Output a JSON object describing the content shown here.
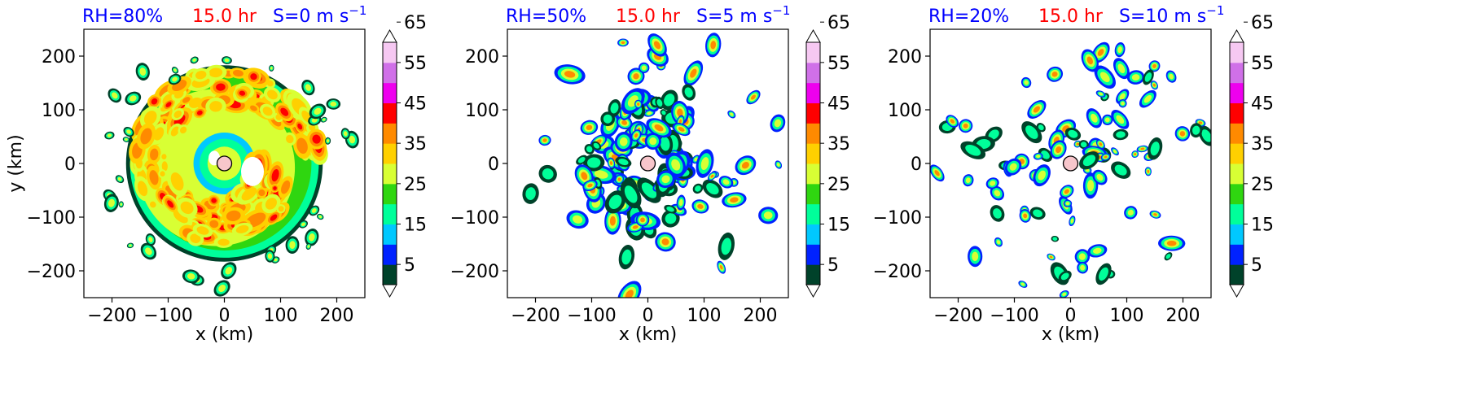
{
  "chart_data": [
    {
      "type": "heatmap",
      "title_parts": [
        {
          "text": "RH=80%",
          "color": "#0000ff"
        },
        {
          "text": "15.0 hr",
          "color": "#ff0000"
        },
        {
          "text": "S=0 m s",
          "sup": "−1",
          "color": "#0000ff"
        }
      ],
      "xlabel": "x (km)",
      "ylabel": "y (km)",
      "xlim": [
        -250,
        250
      ],
      "ylim": [
        -250,
        250
      ],
      "xticks": [
        -200,
        -100,
        0,
        100,
        200
      ],
      "yticks": [
        -200,
        -100,
        0,
        100,
        200
      ],
      "xtick_labels": [
        "−200",
        "−100",
        "0",
        "100",
        "200"
      ],
      "ytick_labels": [
        "−200",
        "−100",
        "0",
        "100",
        "200"
      ],
      "center_marker": {
        "x": 0,
        "y": 0
      },
      "pattern": "dense-spiral",
      "colorbar": {
        "levels": [
          5,
          15,
          25,
          35,
          45,
          55,
          65
        ],
        "labels": [
          "5",
          "15",
          "25",
          "35",
          "45",
          "55",
          "65"
        ],
        "extend": "both"
      }
    },
    {
      "type": "heatmap",
      "title_parts": [
        {
          "text": "RH=50%",
          "color": "#0000ff"
        },
        {
          "text": "15.0 hr",
          "color": "#ff0000"
        },
        {
          "text": "S=5 m s",
          "sup": "−1",
          "color": "#0000ff"
        }
      ],
      "xlabel": "x (km)",
      "ylabel": "",
      "xlim": [
        -250,
        250
      ],
      "ylim": [
        -250,
        250
      ],
      "xticks": [
        -200,
        -100,
        0,
        100,
        200
      ],
      "yticks": [
        -200,
        -100,
        0,
        100,
        200
      ],
      "xtick_labels": [
        "−200",
        "−100",
        "0",
        "100",
        "200"
      ],
      "ytick_labels": [
        "−200",
        "−100",
        "0",
        "100",
        "200"
      ],
      "center_marker": {
        "x": 0,
        "y": 0
      },
      "pattern": "scattered-rings",
      "colorbar": {
        "levels": [
          5,
          15,
          25,
          35,
          45,
          55,
          65
        ],
        "labels": [
          "5",
          "15",
          "25",
          "35",
          "45",
          "55",
          "65"
        ],
        "extend": "both"
      }
    },
    {
      "type": "heatmap",
      "title_parts": [
        {
          "text": "RH=20%",
          "color": "#0000ff"
        },
        {
          "text": "15.0 hr",
          "color": "#ff0000"
        },
        {
          "text": "S=10 m s",
          "sup": "−1",
          "color": "#0000ff"
        }
      ],
      "xlabel": "x (km)",
      "ylabel": "",
      "xlim": [
        -250,
        250
      ],
      "ylim": [
        -250,
        250
      ],
      "xticks": [
        -200,
        -100,
        0,
        100,
        200
      ],
      "yticks": [
        -200,
        -100,
        0,
        100,
        200
      ],
      "xtick_labels": [
        "−200",
        "−100",
        "0",
        "100",
        "200"
      ],
      "ytick_labels": [
        "−200",
        "−100",
        "0",
        "100",
        "200"
      ],
      "center_marker": {
        "x": 0,
        "y": 0
      },
      "pattern": "sparse-cells",
      "colorbar": {
        "levels": [
          5,
          15,
          25,
          35,
          45,
          55,
          65
        ],
        "labels": [
          "5",
          "15",
          "25",
          "35",
          "45",
          "55",
          "65"
        ],
        "extend": "both"
      }
    }
  ],
  "colors": {
    "levels": [
      "#00422a",
      "#0022ff",
      "#00c8ff",
      "#00ff9a",
      "#2fd610",
      "#d8ff34",
      "#ffd000",
      "#ff8a00",
      "#ff0000",
      "#ee00ee",
      "#d070e8",
      "#f6c8f2"
    ],
    "title_blue": "#0000ff",
    "title_red": "#ff0000",
    "center_marker_fill": "#f7c6cb"
  }
}
